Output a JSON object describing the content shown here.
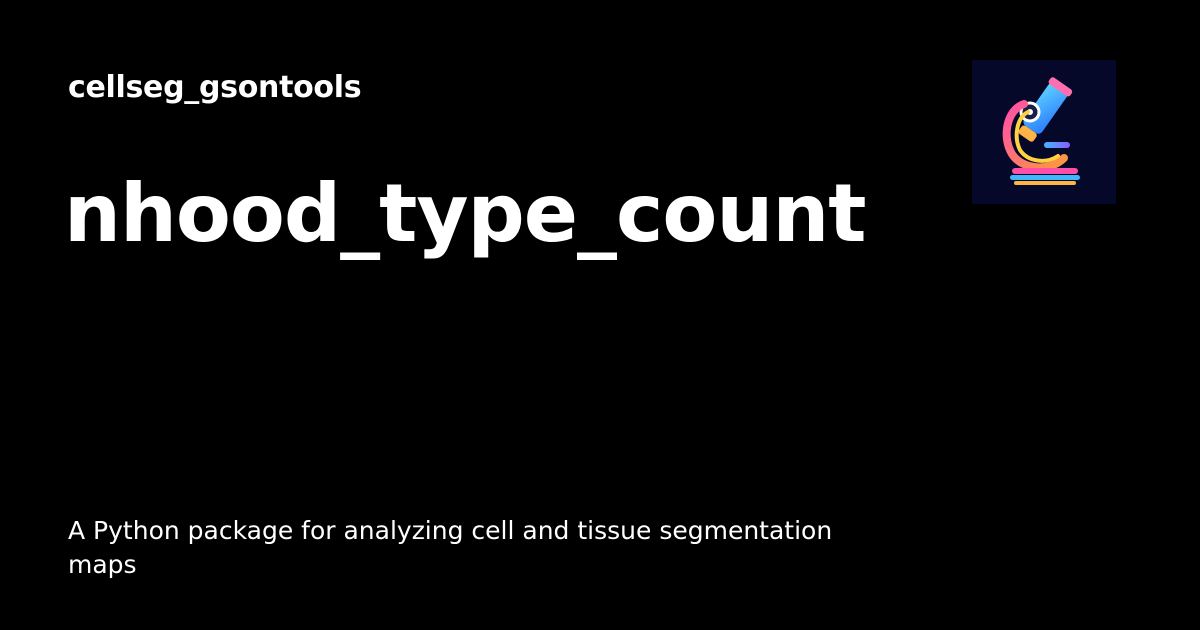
{
  "site": {
    "name": "cellseg_gsontools"
  },
  "page": {
    "title": "nhood_type_count",
    "description": "A Python package for analyzing cell and tissue segmentation maps"
  },
  "logo": {
    "icon": "microscope-icon"
  },
  "colors": {
    "background": "#000000",
    "text": "#ffffff",
    "logo_background": "#06082a"
  }
}
